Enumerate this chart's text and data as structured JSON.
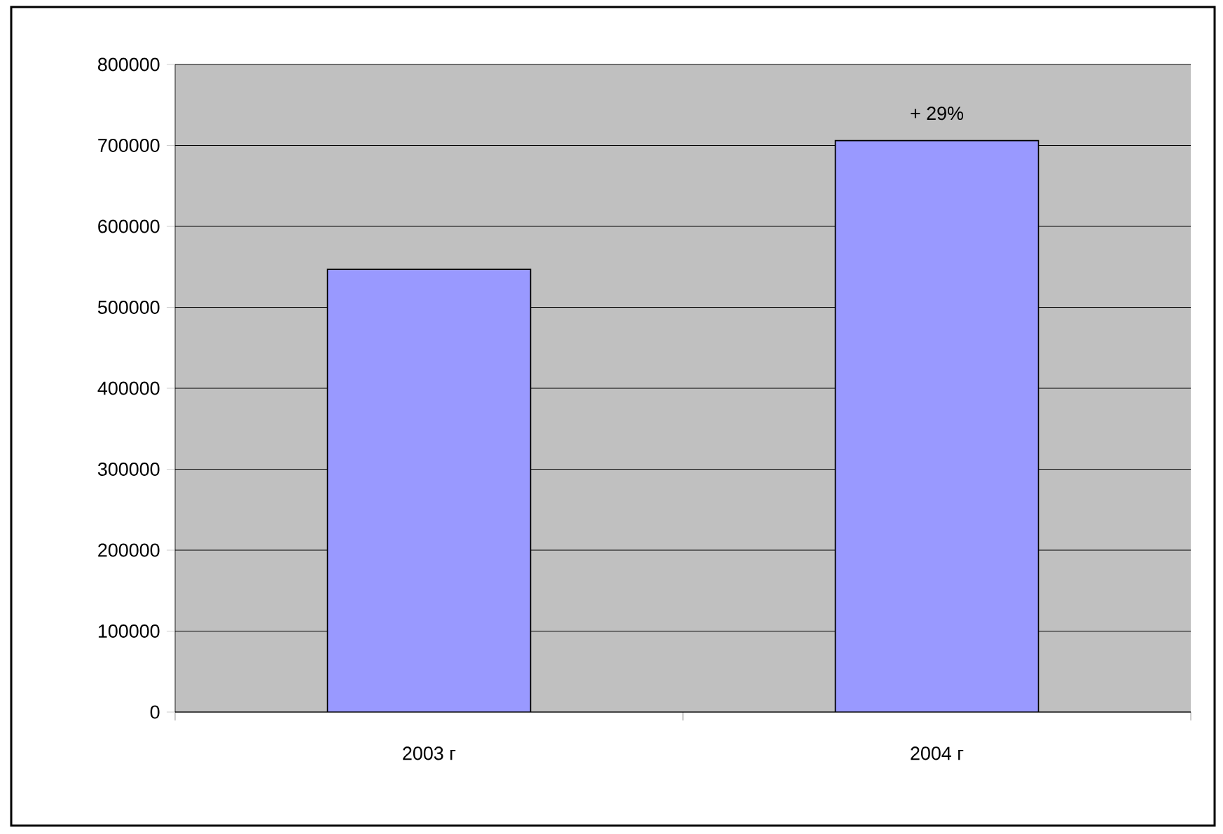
{
  "chart_data": {
    "type": "bar",
    "categories": [
      "2003 г",
      "2004 г"
    ],
    "values": [
      547000,
      706000
    ],
    "color": "#9999ff",
    "ylim": [
      0,
      800000
    ],
    "yticks": [
      0,
      100000,
      200000,
      300000,
      400000,
      500000,
      600000,
      700000,
      800000
    ],
    "grid": "y",
    "annotations": [
      {
        "text": "+ 29%",
        "x": "2004 г",
        "y": 706000
      }
    ]
  }
}
